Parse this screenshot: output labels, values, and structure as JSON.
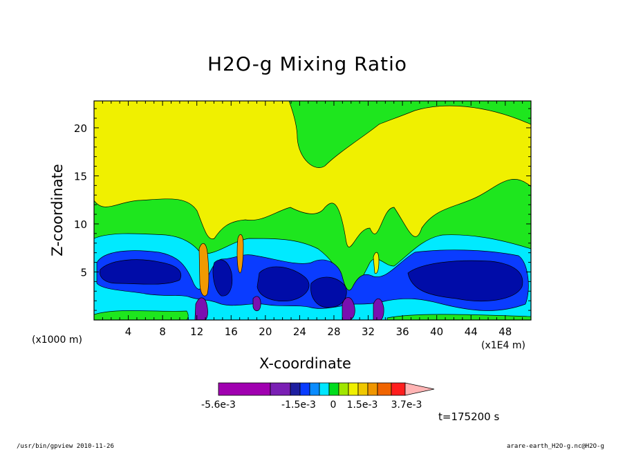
{
  "chart_data": {
    "type": "heatmap",
    "title": "H2O-g Mixing Ratio",
    "xlabel": "X-coordinate",
    "ylabel": "Z-coordinate",
    "x_unit_left": "(x1000 m)",
    "x_unit_right": "(x1E4 m)",
    "x_ticks": [
      "4",
      "8",
      "12",
      "16",
      "20",
      "24",
      "28",
      "32",
      "36",
      "40",
      "44",
      "48"
    ],
    "x_tick_values": [
      4,
      8,
      12,
      16,
      20,
      24,
      28,
      32,
      36,
      40,
      44,
      48
    ],
    "y_ticks": [
      "5",
      "10",
      "15",
      "20"
    ],
    "y_tick_values": [
      5,
      10,
      15,
      20
    ],
    "xlim": [
      0,
      51
    ],
    "ylim": [
      0,
      22.8
    ],
    "time_label": "t=175200 s",
    "colorbar": {
      "labels": [
        "-5.6e-3",
        "-1.5e-3",
        "0",
        "1.5e-3",
        "3.7e-3"
      ],
      "colors": [
        "#a000b0",
        "#7a1fb4",
        "#1e1ea0",
        "#0a3cff",
        "#0a8cff",
        "#00e6ff",
        "#00dc1e",
        "#a0e600",
        "#f0f000",
        "#f0c800",
        "#f09600",
        "#f06400",
        "#ff1e1e",
        "#f07070",
        "#ffb4b4"
      ]
    },
    "colors": {
      "yellow": "#f0f000",
      "green": "#1ee61e",
      "cyan": "#00eaff",
      "blue": "#0a3cff",
      "navy": "#000ca8",
      "purple": "#7a10b0",
      "orange": "#f09a00"
    }
  },
  "footer": {
    "left": "/usr/bin/gpview   2010-11-26",
    "right": "arare-earth_H2O-g.nc@H2O-g"
  }
}
